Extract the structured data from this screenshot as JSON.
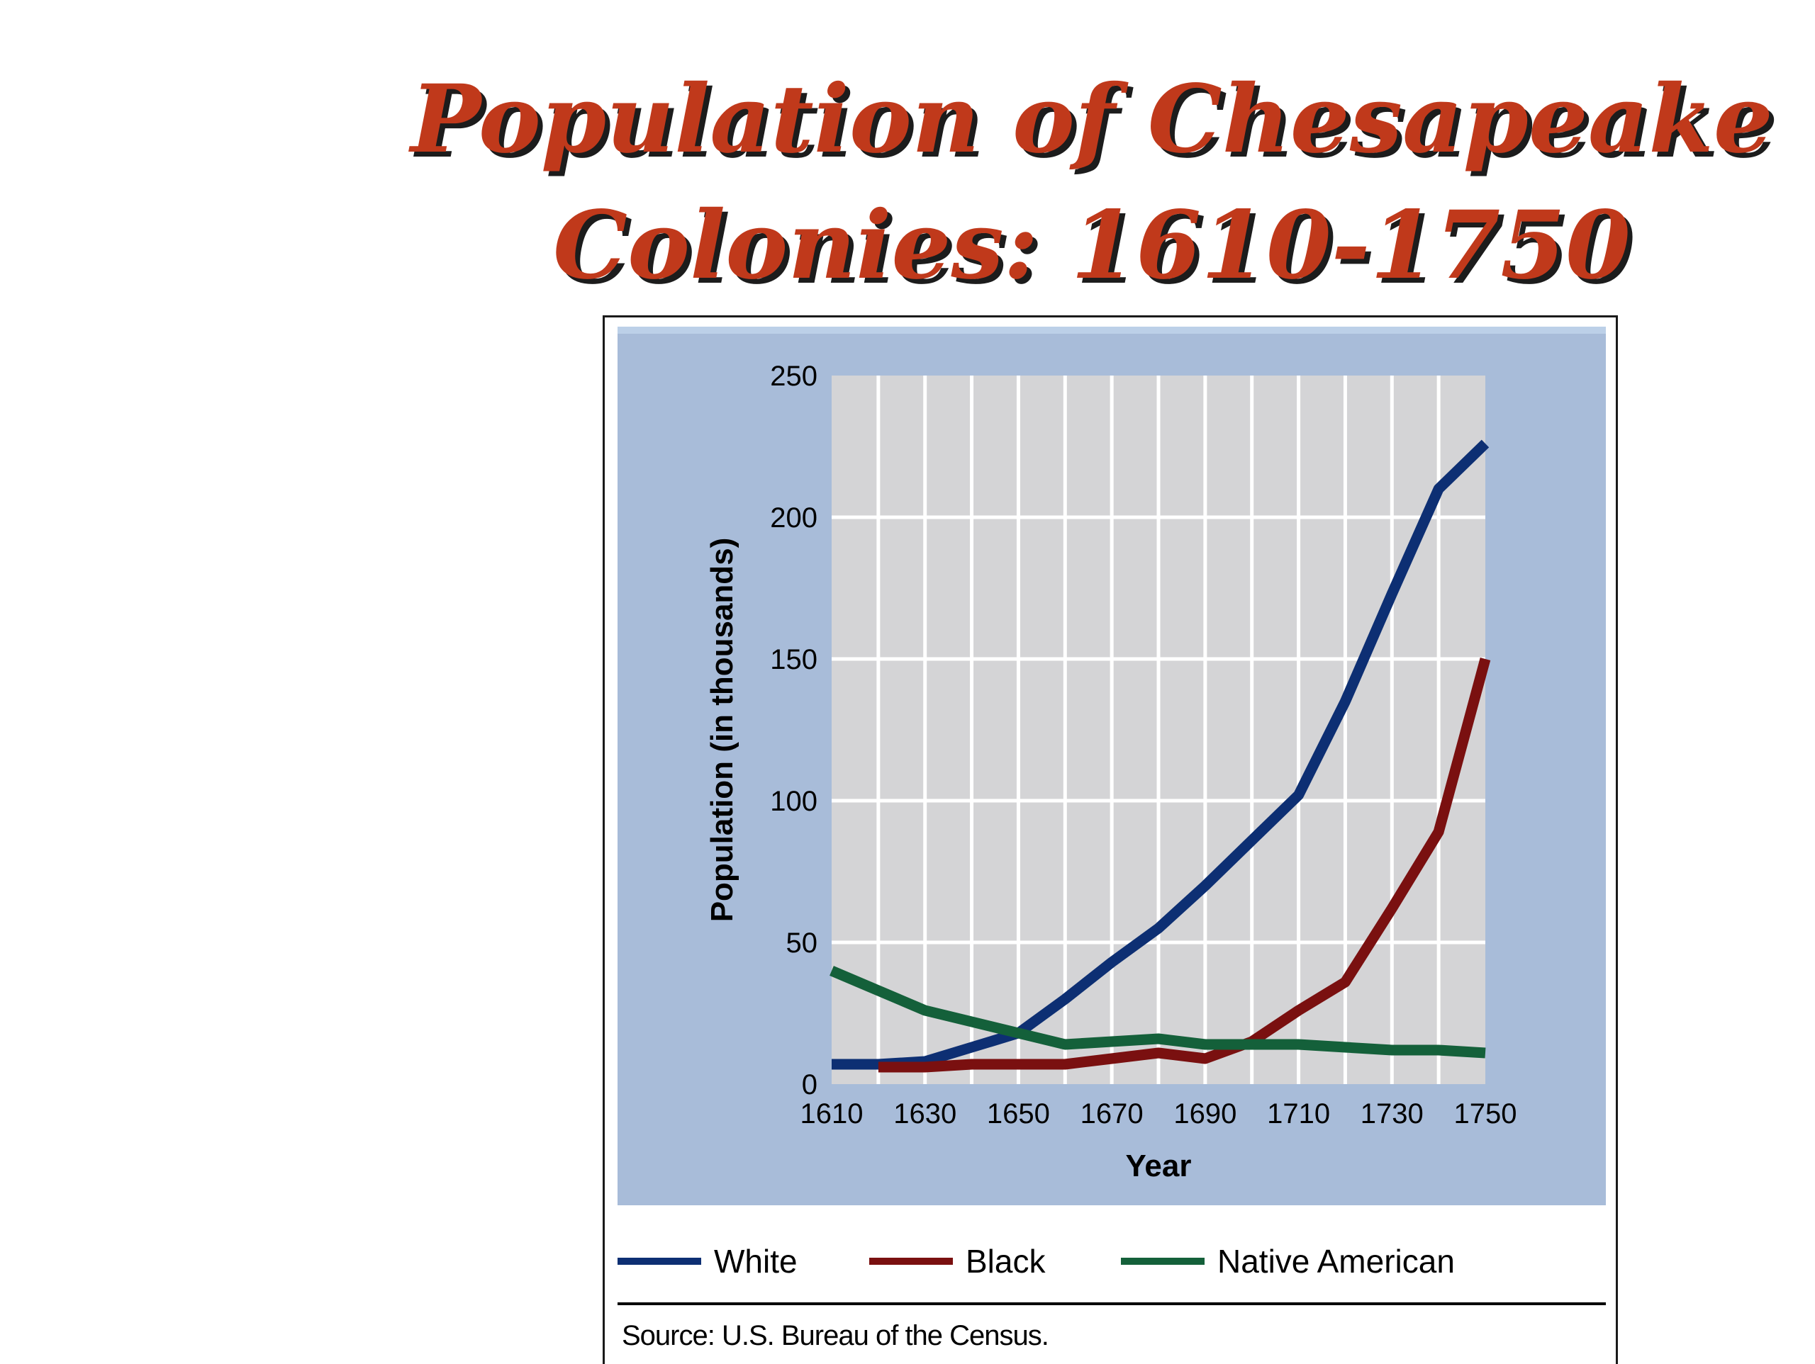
{
  "slide": {
    "title_line1": "Population of Chesapeake",
    "title_line2": "Colonies: 1610-1750"
  },
  "chart_data": {
    "type": "line",
    "xlabel": "Year",
    "ylabel": "Population (in thousands)",
    "xlim": [
      1610,
      1750
    ],
    "ylim": [
      0,
      250
    ],
    "x_ticks": [
      1610,
      1630,
      1650,
      1670,
      1690,
      1710,
      1730,
      1750
    ],
    "y_ticks": [
      0,
      50,
      100,
      150,
      200,
      250
    ],
    "grid": true,
    "x": [
      1610,
      1620,
      1630,
      1640,
      1650,
      1660,
      1670,
      1680,
      1690,
      1700,
      1710,
      1720,
      1730,
      1740,
      1750
    ],
    "series": [
      {
        "name": "White",
        "color": "#0d2f73",
        "values": [
          7,
          7,
          8,
          13,
          18,
          30,
          43,
          55,
          70,
          86,
          102,
          135,
          173,
          210,
          226
        ]
      },
      {
        "name": "Black",
        "color": "#7a1010",
        "values": [
          null,
          6,
          6,
          7,
          7,
          7,
          9,
          11,
          9,
          15,
          26,
          36,
          62,
          89,
          150
        ]
      },
      {
        "name": "Native American",
        "color": "#14603a",
        "values": [
          40,
          33,
          26,
          22,
          18,
          14,
          15,
          16,
          14,
          14,
          14,
          13,
          12,
          12,
          11
        ]
      }
    ],
    "legend_position": "bottom",
    "source": "Source: U.S. Bureau of the Census."
  },
  "colors": {
    "title": "#c0391b",
    "panel_background": "#a8bcd9",
    "plot_background": "#d4d4d6",
    "grid": "#ffffff"
  }
}
